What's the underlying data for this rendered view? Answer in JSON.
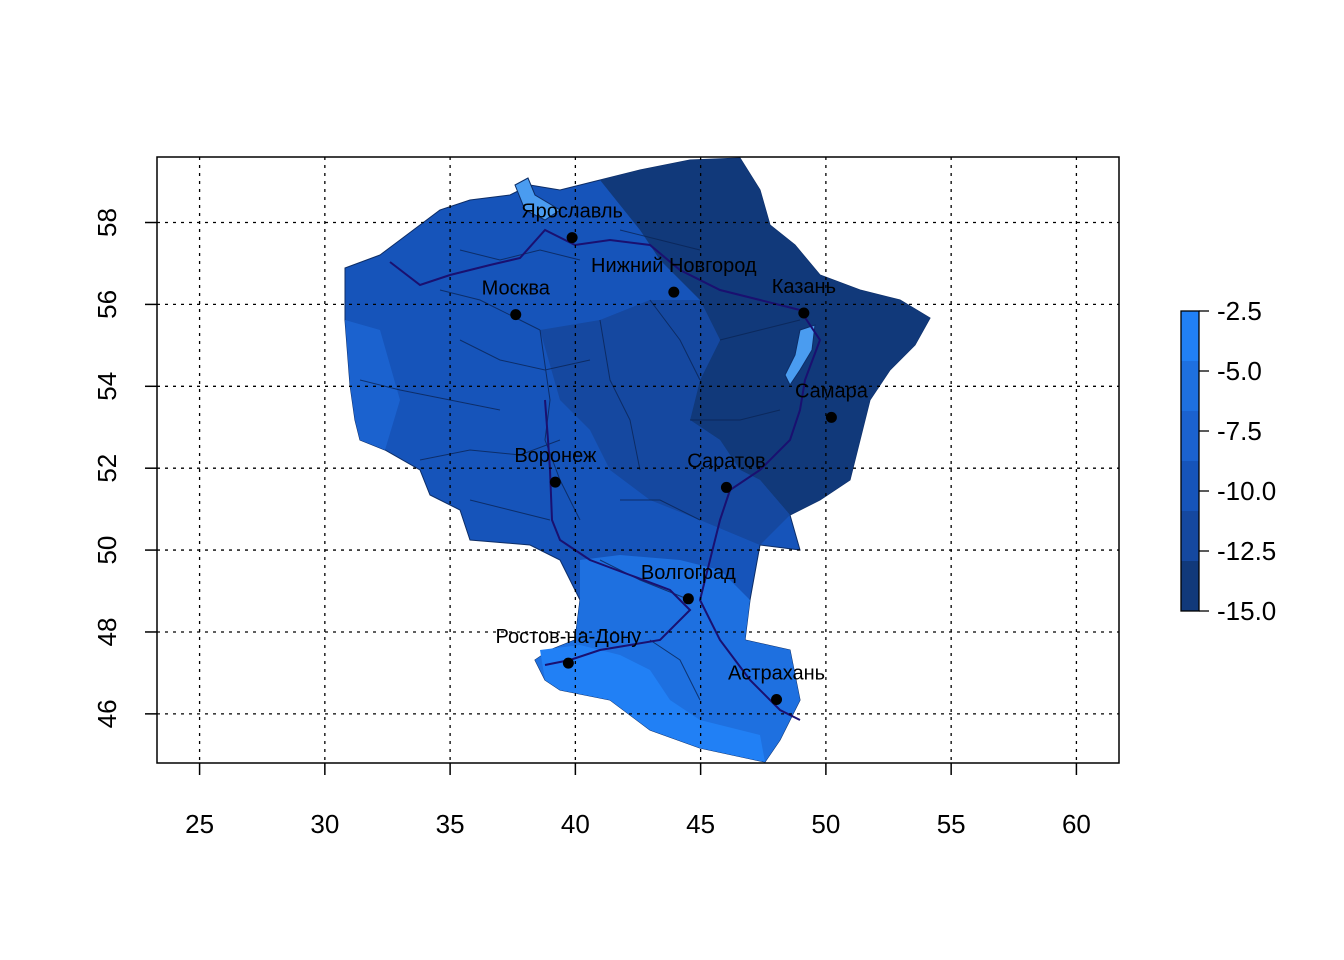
{
  "map": {
    "x_axis": {
      "range": [
        23.3,
        61.7
      ],
      "ticks": [
        25,
        30,
        35,
        40,
        45,
        50,
        55,
        60
      ],
      "labels": [
        "25",
        "30",
        "35",
        "40",
        "45",
        "50",
        "55",
        "60"
      ]
    },
    "y_axis": {
      "range": [
        44.8,
        59.6
      ],
      "ticks": [
        46,
        48,
        50,
        52,
        54,
        56,
        58
      ],
      "labels": [
        "46",
        "48",
        "50",
        "52",
        "54",
        "56",
        "58"
      ]
    },
    "grid": true,
    "cities": [
      {
        "name": "Ярославль",
        "lon": 39.87,
        "lat": 57.63
      },
      {
        "name": "Нижний Новгород",
        "lon": 43.93,
        "lat": 56.3
      },
      {
        "name": "Казань",
        "lon": 49.12,
        "lat": 55.79
      },
      {
        "name": "Москва",
        "lon": 37.62,
        "lat": 55.75
      },
      {
        "name": "Самара",
        "lon": 50.22,
        "lat": 53.24
      },
      {
        "name": "Воронеж",
        "lon": 39.2,
        "lat": 51.66
      },
      {
        "name": "Саратов",
        "lon": 46.03,
        "lat": 51.53
      },
      {
        "name": "Волгоград",
        "lon": 44.51,
        "lat": 48.81
      },
      {
        "name": "Ростов-на-Дону",
        "lon": 39.72,
        "lat": 47.24
      },
      {
        "name": "Астрахань",
        "lon": 48.03,
        "lat": 46.35
      }
    ]
  },
  "legend": {
    "ticks": [
      "-2.5",
      "-5.0",
      "-7.5",
      "-10.0",
      "-12.5",
      "-15.0"
    ],
    "colors": [
      "#11397a",
      "#1548a0",
      "#1654ba",
      "#1b62cf",
      "#1e70e0",
      "#2180f5"
    ]
  }
}
